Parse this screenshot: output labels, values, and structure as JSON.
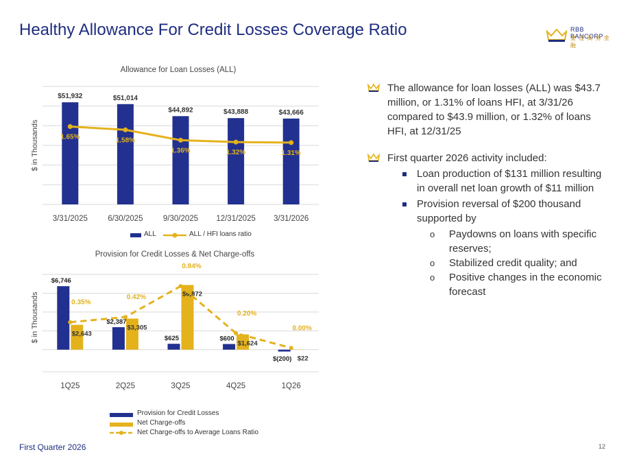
{
  "page": {
    "title": "Healthy Allowance For Credit Losses Coverage Ratio",
    "logo_text_en": "RBB BANCORP",
    "logo_text_cn": "皇 佳 商 务 金 融",
    "footer": "First Quarter 2026",
    "page_number": "12"
  },
  "colors": {
    "navy": "#22318f",
    "gold": "#e4b21c",
    "title": "#1f2d80"
  },
  "bullets": {
    "b1": "The allowance for loan losses (ALL) was $43.7 million, or 1.31% of loans HFI, at 3/31/26 compared to $43.9 million, or 1.32% of loans HFI, at 12/31/25",
    "b2": "First quarter 2026 activity included:",
    "s1": "Loan production of $131 million resulting in overall net loan growth of $11 million",
    "s2": "Provision reversal of $200 thousand supported by",
    "o1": "Paydowns on loans with specific reserves;",
    "o2": "Stabilized credit quality; and",
    "o3": "Positive changes in the economic forecast"
  },
  "chart_data": [
    {
      "type": "bar",
      "title": "Allowance for Loan Losses (ALL)",
      "ylabel": "$ in Thousands",
      "categories": [
        "3/31/2025",
        "6/30/2025",
        "9/30/2025",
        "12/31/2025",
        "3/31/2026"
      ],
      "ylim": [
        0,
        60000
      ],
      "series": [
        {
          "name": "ALL",
          "kind": "bar",
          "color": "#22318f",
          "values": [
            51932,
            51014,
            44892,
            43888,
            43666
          ],
          "labels": [
            "$51,932",
            "$51,014",
            "$44,892",
            "$43,888",
            "$43,666"
          ]
        },
        {
          "name": "ALL / HFI loans ratio",
          "kind": "line",
          "color": "#e4b21c",
          "values": [
            1.65,
            1.58,
            1.36,
            1.32,
            1.31
          ],
          "labels": [
            "1.65%",
            "1.58%",
            "1.36%",
            "1.32%",
            "1.31%"
          ]
        }
      ],
      "ratio_range": [
        0,
        2.5
      ],
      "grid": true,
      "legend": "bottom"
    },
    {
      "type": "bar",
      "title": "Provision for Credit Losses & Net Charge-offs",
      "ylabel": "$ in Thousands",
      "categories": [
        "1Q25",
        "2Q25",
        "3Q25",
        "4Q25",
        "1Q26"
      ],
      "ylim": [
        -600,
        8000
      ],
      "series": [
        {
          "name": "Provision for Credit Losses",
          "kind": "bar",
          "color": "#22318f",
          "values": [
            6746,
            2387,
            625,
            600,
            -200
          ],
          "labels": [
            "$6,746",
            "$2,387",
            "$625",
            "$600",
            "$(200)"
          ]
        },
        {
          "name": "Net Charge-offs",
          "kind": "bar",
          "color": "#e4b21c",
          "values": [
            2643,
            3305,
            6872,
            1624,
            22
          ],
          "labels": [
            "$2,643",
            "$3,305",
            "$6,872",
            "$1,624",
            "$22"
          ]
        },
        {
          "name": "Net Charge-offs to Average Loans Ratio",
          "kind": "line",
          "color": "#e4b21c",
          "values": [
            0.35,
            0.42,
            0.84,
            0.2,
            0.0
          ],
          "labels": [
            "0.35%",
            "0.42%",
            "0.84%",
            "0.20%",
            "0.00%"
          ]
        }
      ],
      "ratio_range": [
        -0.1,
        1.0
      ],
      "grid": true,
      "legend": "bottom"
    }
  ]
}
